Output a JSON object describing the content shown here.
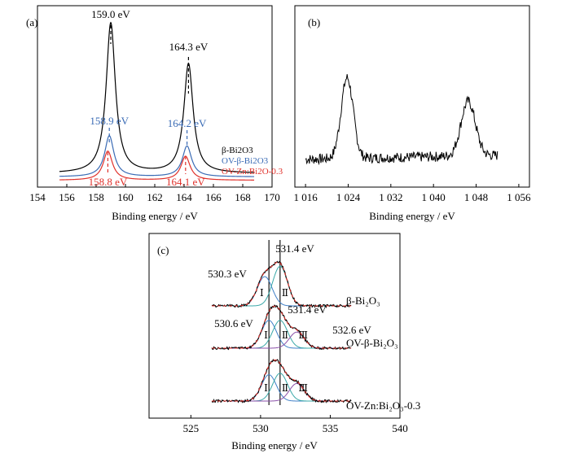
{
  "chart_data": [
    {
      "panel": "(a)",
      "type": "line",
      "xlabel": "Binding energy / eV",
      "xlim": [
        154,
        170
      ],
      "xticks": [
        "154",
        "156",
        "158",
        "160",
        "162",
        "164",
        "166",
        "168",
        "170"
      ],
      "series": [
        {
          "name": "β-Bi2O3",
          "color": "#000000",
          "peaks": [
            {
              "x": 159.0,
              "height": 0.88
            },
            {
              "x": 164.3,
              "height": 0.64
            }
          ],
          "offset": 0.08
        },
        {
          "name": "OV-β-Bi2O3",
          "color": "#3a6bb5",
          "peaks": [
            {
              "x": 158.9,
              "height": 0.24
            },
            {
              "x": 164.2,
              "height": 0.18
            }
          ],
          "offset": 0.06
        },
        {
          "name": "OV-Zn:Bi2O-0.3",
          "color": "#e0302a",
          "peaks": [
            {
              "x": 158.8,
              "height": 0.17
            },
            {
              "x": 164.1,
              "height": 0.14
            }
          ],
          "offset": 0.04
        }
      ],
      "annotations": [
        {
          "text": "159.0 eV",
          "x": 159.0,
          "color": "#000000"
        },
        {
          "text": "164.3 eV",
          "x": 164.3,
          "color": "#000000"
        },
        {
          "text": "158.9 eV",
          "x": 158.9,
          "color": "#3a6bb5"
        },
        {
          "text": "164.2 eV",
          "x": 164.2,
          "color": "#3a6bb5"
        },
        {
          "text": "158.8 eV",
          "x": 158.8,
          "color": "#e0302a"
        },
        {
          "text": "164.1 eV",
          "x": 164.1,
          "color": "#e0302a"
        }
      ]
    },
    {
      "panel": "(b)",
      "type": "line",
      "xlabel": "Binding energy / eV",
      "xlim": [
        1014,
        1058
      ],
      "xticks": [
        "1 016",
        "1 024",
        "1 032",
        "1 040",
        "1 048",
        "1 056"
      ],
      "xtick_values": [
        1016,
        1024,
        1032,
        1040,
        1048,
        1056
      ],
      "series": [
        {
          "name": "",
          "color": "#000000",
          "x_range": [
            1016,
            1052
          ],
          "peaks": [
            {
              "x": 1023.8,
              "height": 0.62,
              "width": 1.6
            },
            {
              "x": 1046.5,
              "height": 0.42,
              "width": 1.9
            }
          ],
          "baseline": 0.12
        }
      ]
    },
    {
      "panel": "(c)",
      "type": "line",
      "xlabel": "Binding energy / eV",
      "xlim": [
        522,
        540
      ],
      "xticks": [
        "525",
        "530",
        "535",
        "540"
      ],
      "xtick_values": [
        525,
        530,
        535,
        540
      ],
      "vertical_lines": [
        530.6,
        531.4
      ],
      "curves": [
        {
          "name": "β-Bi2O3",
          "label": "β-Bi₂O₃",
          "components": [
            {
              "label": "Ⅰ",
              "x": 530.3,
              "height": 1.0
            },
            {
              "label": "Ⅱ",
              "x": 531.4,
              "height": 1.35
            }
          ],
          "annotations": [
            "530.3 eV",
            "531.4 eV"
          ]
        },
        {
          "name": "OV-β-Bi2O3",
          "label": "OV-β-Bi₂O₃",
          "components": [
            {
              "label": "Ⅰ",
              "x": 530.6,
              "height": 0.95
            },
            {
              "label": "Ⅱ",
              "x": 531.4,
              "height": 0.95
            },
            {
              "label": "Ⅲ",
              "x": 532.6,
              "height": 0.55
            }
          ],
          "annotations": [
            "530.6 eV",
            "531.4 eV",
            "532.6 eV"
          ]
        },
        {
          "name": "OV-Zn:Bi2O3-0.3",
          "label": "OV-Zn:Bi₂O₃-0.3",
          "components": [
            {
              "label": "Ⅰ",
              "x": 530.6,
              "height": 0.9
            },
            {
              "label": "Ⅱ",
              "x": 531.4,
              "height": 0.95
            },
            {
              "label": "Ⅲ",
              "x": 532.6,
              "height": 0.6
            }
          ],
          "annotations": []
        }
      ]
    }
  ]
}
